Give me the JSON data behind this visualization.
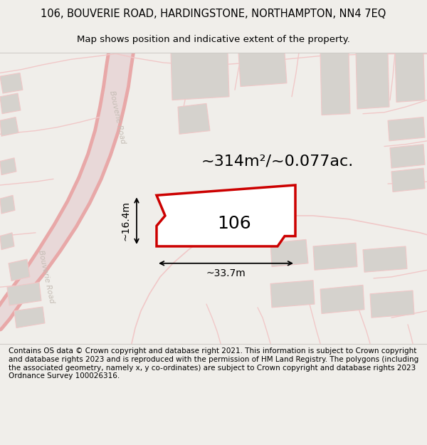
{
  "title_line1": "106, BOUVERIE ROAD, HARDINGSTONE, NORTHAMPTON, NN4 7EQ",
  "title_line2": "Map shows position and indicative extent of the property.",
  "area_label": "~314m²/~0.077ac.",
  "house_number": "106",
  "width_label": "~33.7m",
  "height_label": "~16.4m",
  "footer_text": "Contains OS data © Crown copyright and database right 2021. This information is subject to Crown copyright and database rights 2023 and is reproduced with the permission of HM Land Registry. The polygons (including the associated geometry, namely x, y co-ordinates) are subject to Crown copyright and database rights 2023 Ordnance Survey 100026316.",
  "bg_color": "#f0eeea",
  "map_bg": "#f5f3ef",
  "road_pink": "#f0c8c8",
  "road_pink_dark": "#e8a8a8",
  "building_gray_fill": "#d5d2cd",
  "building_gray_edge": "#bfbcb7",
  "prop_fill": "#ffffff",
  "prop_edge": "#cc0000",
  "road_label_color": "#c5bdb5",
  "title_fs": 10.5,
  "sub_fs": 9.5,
  "area_fs": 16,
  "num_fs": 18,
  "dim_fs": 10,
  "footer_fs": 7.5
}
